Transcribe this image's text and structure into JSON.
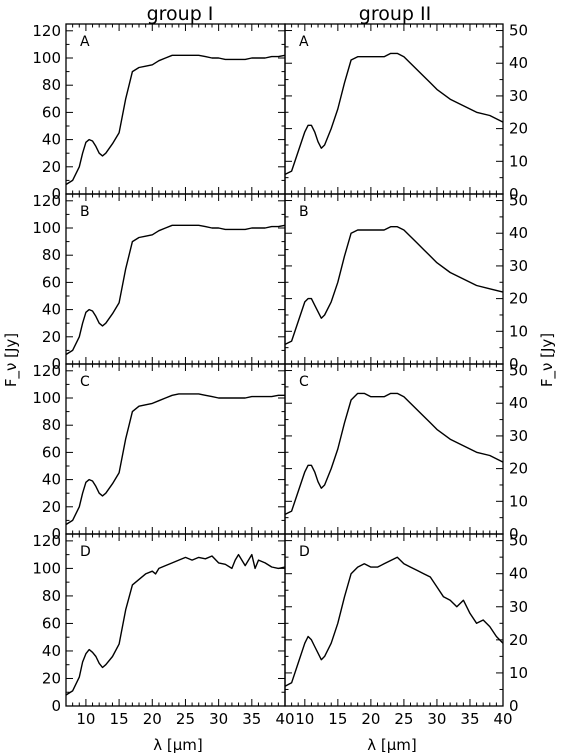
{
  "figure": {
    "column_titles": [
      "group I",
      "group II"
    ],
    "xlabel": "λ [μm]",
    "ylabel_left": "F_ν [Jy]",
    "ylabel_right": "F_ν [Jy]"
  },
  "chart_data": [
    {
      "type": "line",
      "panel": "A",
      "column": "group I",
      "row": 0,
      "xlim": [
        7,
        40
      ],
      "ylim": [
        0,
        125
      ],
      "xticks": [
        10,
        15,
        20,
        25,
        30,
        35
      ],
      "xtick_labels": [
        "10",
        "15",
        "20",
        "25",
        "30",
        "35"
      ],
      "yticks": [
        0,
        20,
        40,
        60,
        80,
        100,
        120
      ],
      "ytick_labels": [
        "0",
        "20",
        "40",
        "60",
        "80",
        "100",
        "120"
      ],
      "series": [
        {
          "x": [
            7,
            8,
            9,
            9.5,
            10,
            10.5,
            11,
            11.5,
            12,
            12.5,
            13,
            14,
            15,
            16,
            17,
            18,
            19,
            20,
            21,
            22,
            23,
            24,
            25,
            26,
            27,
            28,
            29,
            30,
            31,
            32,
            33,
            34,
            35,
            36,
            37,
            38,
            39,
            40
          ],
          "y": [
            7,
            10,
            20,
            30,
            38,
            40,
            39,
            35,
            30,
            28,
            30,
            37,
            45,
            70,
            90,
            93,
            94,
            95,
            98,
            100,
            102,
            102,
            102,
            102,
            102,
            101,
            100,
            100,
            99,
            99,
            99,
            99,
            100,
            100,
            100,
            101,
            101,
            102
          ]
        }
      ]
    },
    {
      "type": "line",
      "panel": "A",
      "column": "group II",
      "row": 0,
      "xlim": [
        7,
        40
      ],
      "ylim": [
        0,
        52
      ],
      "xticks": [
        10,
        15,
        20,
        25,
        30,
        35
      ],
      "xtick_labels": [
        "10",
        "15",
        "20",
        "25",
        "30",
        "35"
      ],
      "yticks": [
        0,
        10,
        20,
        30,
        40,
        50
      ],
      "ytick_labels": [
        "0",
        "10",
        "20",
        "30",
        "40",
        "50"
      ],
      "series": [
        {
          "x": [
            7,
            8,
            9,
            10,
            10.5,
            11,
            11.5,
            12,
            12.5,
            13,
            14,
            15,
            16,
            17,
            18,
            19,
            20,
            21,
            22,
            23,
            24,
            25,
            26,
            27,
            28,
            29,
            30,
            32,
            34,
            36,
            38,
            40
          ],
          "y": [
            6,
            7,
            13,
            19,
            21,
            21,
            19,
            16,
            14,
            15,
            20,
            26,
            34,
            41,
            42,
            42,
            42,
            42,
            42,
            43,
            43,
            42,
            40,
            38,
            36,
            34,
            32,
            29,
            27,
            25,
            24,
            22
          ]
        }
      ]
    },
    {
      "type": "line",
      "panel": "B",
      "column": "group I",
      "row": 1,
      "xlim": [
        7,
        40
      ],
      "ylim": [
        0,
        125
      ],
      "xticks": [
        10,
        15,
        20,
        25,
        30,
        35
      ],
      "xtick_labels": [
        "10",
        "15",
        "20",
        "25",
        "30",
        "35"
      ],
      "yticks": [
        0,
        20,
        40,
        60,
        80,
        100,
        120
      ],
      "ytick_labels": [
        "0",
        "20",
        "40",
        "60",
        "80",
        "100",
        "120"
      ],
      "series": [
        {
          "x": [
            7,
            8,
            9,
            9.5,
            10,
            10.5,
            11,
            11.5,
            12,
            12.5,
            13,
            14,
            15,
            16,
            17,
            18,
            19,
            20,
            21,
            22,
            23,
            24,
            25,
            26,
            27,
            28,
            29,
            30,
            31,
            32,
            33,
            34,
            35,
            36,
            37,
            38,
            39,
            40
          ],
          "y": [
            7,
            10,
            20,
            30,
            38,
            40,
            39,
            35,
            30,
            28,
            30,
            37,
            45,
            70,
            90,
            93,
            94,
            95,
            98,
            100,
            102,
            102,
            102,
            102,
            102,
            101,
            100,
            100,
            99,
            99,
            99,
            99,
            100,
            100,
            100,
            101,
            101,
            102
          ]
        }
      ]
    },
    {
      "type": "line",
      "panel": "B",
      "column": "group II",
      "row": 1,
      "xlim": [
        7,
        40
      ],
      "ylim": [
        0,
        52
      ],
      "xticks": [
        10,
        15,
        20,
        25,
        30,
        35
      ],
      "xtick_labels": [
        "10",
        "15",
        "20",
        "25",
        "30",
        "35"
      ],
      "yticks": [
        0,
        10,
        20,
        30,
        40,
        50
      ],
      "ytick_labels": [
        "0",
        "10",
        "20",
        "30",
        "40",
        "50"
      ],
      "series": [
        {
          "x": [
            7,
            8,
            9,
            10,
            10.5,
            11,
            11.5,
            12,
            12.5,
            13,
            14,
            15,
            16,
            17,
            18,
            19,
            20,
            21,
            22,
            23,
            24,
            25,
            26,
            27,
            28,
            29,
            30,
            32,
            34,
            36,
            38,
            40
          ],
          "y": [
            6,
            7,
            13,
            19,
            20,
            20,
            18,
            16,
            14,
            15,
            19,
            25,
            33,
            40,
            41,
            41,
            41,
            41,
            41,
            42,
            42,
            41,
            39,
            37,
            35,
            33,
            31,
            28,
            26,
            24,
            23,
            22
          ]
        }
      ]
    },
    {
      "type": "line",
      "panel": "C",
      "column": "group I",
      "row": 2,
      "xlim": [
        7,
        40
      ],
      "ylim": [
        0,
        125
      ],
      "xticks": [
        10,
        15,
        20,
        25,
        30,
        35
      ],
      "xtick_labels": [
        "10",
        "15",
        "20",
        "25",
        "30",
        "35"
      ],
      "yticks": [
        0,
        20,
        40,
        60,
        80,
        100,
        120
      ],
      "ytick_labels": [
        "0",
        "20",
        "40",
        "60",
        "80",
        "100",
        "120"
      ],
      "series": [
        {
          "x": [
            7,
            8,
            9,
            9.5,
            10,
            10.5,
            11,
            11.5,
            12,
            12.5,
            13,
            14,
            15,
            16,
            17,
            18,
            19,
            20,
            21,
            22,
            23,
            24,
            25,
            26,
            27,
            28,
            29,
            30,
            31,
            32,
            33,
            34,
            35,
            36,
            37,
            38,
            39,
            40
          ],
          "y": [
            7,
            10,
            20,
            30,
            38,
            40,
            39,
            35,
            30,
            28,
            30,
            37,
            45,
            70,
            90,
            94,
            95,
            96,
            98,
            100,
            102,
            103,
            103,
            103,
            103,
            102,
            101,
            100,
            100,
            100,
            100,
            100,
            101,
            101,
            101,
            101,
            102,
            102
          ]
        }
      ]
    },
    {
      "type": "line",
      "panel": "C",
      "column": "group II",
      "row": 2,
      "xlim": [
        7,
        40
      ],
      "ylim": [
        0,
        52
      ],
      "xticks": [
        10,
        15,
        20,
        25,
        30,
        35
      ],
      "xtick_labels": [
        "10",
        "15",
        "20",
        "25",
        "30",
        "35"
      ],
      "yticks": [
        0,
        10,
        20,
        30,
        40,
        50
      ],
      "ytick_labels": [
        "0",
        "10",
        "20",
        "30",
        "40",
        "50"
      ],
      "series": [
        {
          "x": [
            7,
            8,
            9,
            10,
            10.5,
            11,
            11.5,
            12,
            12.5,
            13,
            14,
            15,
            16,
            17,
            18,
            19,
            20,
            21,
            22,
            23,
            24,
            25,
            26,
            27,
            28,
            29,
            30,
            32,
            34,
            36,
            38,
            40
          ],
          "y": [
            6,
            7,
            13,
            19,
            21,
            21,
            19,
            16,
            14,
            15,
            20,
            26,
            34,
            41,
            43,
            43,
            42,
            42,
            42,
            43,
            43,
            42,
            40,
            38,
            36,
            34,
            32,
            29,
            27,
            25,
            24,
            22
          ]
        }
      ]
    },
    {
      "type": "line",
      "panel": "D",
      "column": "group I",
      "row": 3,
      "xlim": [
        7,
        40
      ],
      "ylim": [
        0,
        125
      ],
      "xticks": [
        10,
        15,
        20,
        25,
        30,
        35,
        40
      ],
      "xtick_labels": [
        "10",
        "15",
        "20",
        "25",
        "30",
        "35",
        "40"
      ],
      "yticks": [
        0,
        20,
        40,
        60,
        80,
        100,
        120
      ],
      "ytick_labels": [
        "0",
        "20",
        "40",
        "60",
        "80",
        "100",
        "120"
      ],
      "series": [
        {
          "x": [
            7,
            8,
            9,
            9.5,
            10,
            10.5,
            11,
            11.5,
            12,
            12.5,
            13,
            14,
            15,
            16,
            17,
            18,
            19,
            20,
            20.5,
            21,
            22,
            23,
            24,
            25,
            26,
            27,
            28,
            29,
            30,
            31,
            32,
            32.5,
            33,
            34,
            35,
            35.5,
            36,
            37,
            38,
            39,
            40
          ],
          "y": [
            8,
            11,
            21,
            32,
            38,
            41,
            39,
            36,
            31,
            28,
            30,
            36,
            45,
            70,
            88,
            92,
            96,
            98,
            96,
            100,
            102,
            104,
            106,
            108,
            106,
            108,
            107,
            109,
            104,
            103,
            100,
            106,
            110,
            102,
            110,
            100,
            106,
            104,
            101,
            100,
            101
          ]
        }
      ]
    },
    {
      "type": "line",
      "panel": "D",
      "column": "group II",
      "row": 3,
      "xlim": [
        7,
        40
      ],
      "ylim": [
        0,
        52
      ],
      "xticks": [
        10,
        15,
        20,
        25,
        30,
        35,
        40
      ],
      "xtick_labels": [
        "10",
        "15",
        "20",
        "25",
        "30",
        "35",
        "40"
      ],
      "yticks": [
        0,
        10,
        20,
        30,
        40,
        50
      ],
      "ytick_labels": [
        "0",
        "10",
        "20",
        "30",
        "40",
        "50"
      ],
      "series": [
        {
          "x": [
            7,
            8,
            9,
            10,
            10.5,
            11,
            11.5,
            12,
            12.5,
            13,
            14,
            15,
            16,
            17,
            18,
            19,
            20,
            21,
            22,
            23,
            24,
            25,
            26,
            27,
            28,
            29,
            30,
            31,
            32,
            33,
            34,
            35,
            36,
            37,
            38,
            39,
            40
          ],
          "y": [
            6,
            7,
            13,
            19,
            21,
            20,
            18,
            16,
            14,
            15,
            19,
            25,
            33,
            40,
            42,
            43,
            42,
            42,
            43,
            44,
            45,
            43,
            42,
            41,
            40,
            39,
            36,
            33,
            32,
            30,
            32,
            28,
            25,
            26,
            24,
            21,
            19
          ]
        }
      ]
    }
  ]
}
